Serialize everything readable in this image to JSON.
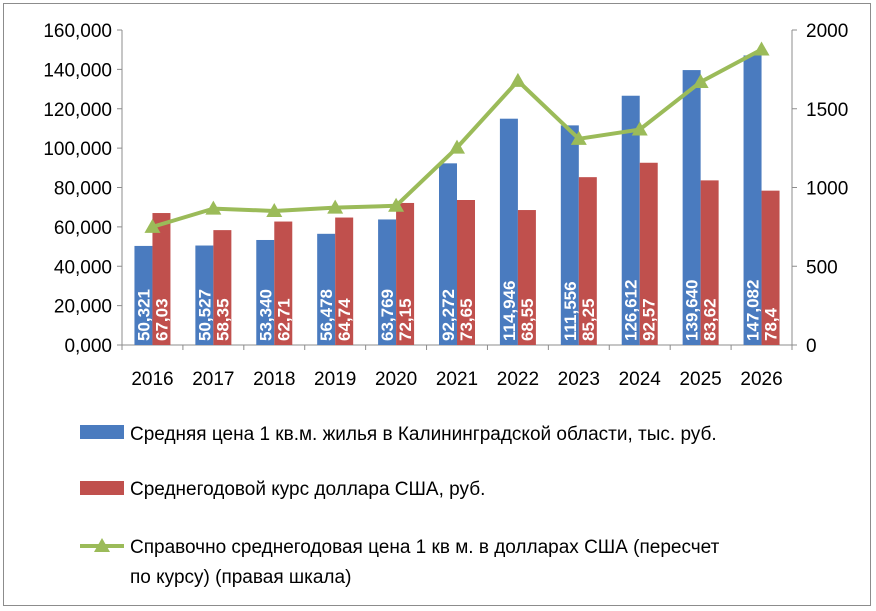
{
  "chart_data": {
    "type": "bar",
    "categories": [
      "2016",
      "2017",
      "2018",
      "2019",
      "2020",
      "2021",
      "2022",
      "2023",
      "2024",
      "2025",
      "2026"
    ],
    "series": [
      {
        "name": "Средняя цена 1 кв.м. жилья в Калининградской области, тыс. руб.",
        "kind": "bar",
        "axis": "left",
        "color": "#4a7bbf",
        "values": [
          50.321,
          50.527,
          53.34,
          56.478,
          63.769,
          92.272,
          114.946,
          111.556,
          126.612,
          139.64,
          147.082
        ],
        "labels": [
          "50,321",
          "50,527",
          "53,340",
          "56,478",
          "63,769",
          "92,272",
          "114,946",
          "111,556",
          "126,612",
          "139,640",
          "147,082"
        ]
      },
      {
        "name": "Среднегодовой курс доллара США, руб.",
        "kind": "bar",
        "axis": "left",
        "color": "#c0504d",
        "values": [
          67.03,
          58.35,
          62.71,
          64.74,
          72.15,
          73.65,
          68.55,
          85.25,
          92.57,
          83.62,
          78.4
        ],
        "labels": [
          "67,03",
          "58,35",
          "62,71",
          "64,74",
          "72,15",
          "73,65",
          "68,55",
          "85,25",
          "92,57",
          "83,62",
          "78,4"
        ]
      },
      {
        "name_lines": [
          "Справочно среднегодовая цена 1 кв м. в долларах США (пересчет",
          "по курсу) (правая шкала)"
        ],
        "kind": "line",
        "axis": "right",
        "color": "#9bbb59",
        "marker": "triangle",
        "values": [
          750,
          866,
          851,
          872,
          884,
          1253,
          1677,
          1309,
          1368,
          1670,
          1876
        ]
      }
    ],
    "y_left": {
      "ylim": [
        0,
        160
      ],
      "ticks": [
        0,
        20,
        40,
        60,
        80,
        100,
        120,
        140,
        160
      ],
      "tick_labels": [
        "0,000",
        "20,000",
        "40,000",
        "60,000",
        "80,000",
        "100,000",
        "120,000",
        "140,000",
        "160,000"
      ]
    },
    "y_right": {
      "ylim": [
        0,
        2000
      ],
      "ticks": [
        0,
        500,
        1000,
        1500,
        2000
      ],
      "tick_labels": [
        "0",
        "500",
        "1000",
        "1500",
        "2000"
      ]
    },
    "grid": false,
    "legend": "bottom"
  }
}
